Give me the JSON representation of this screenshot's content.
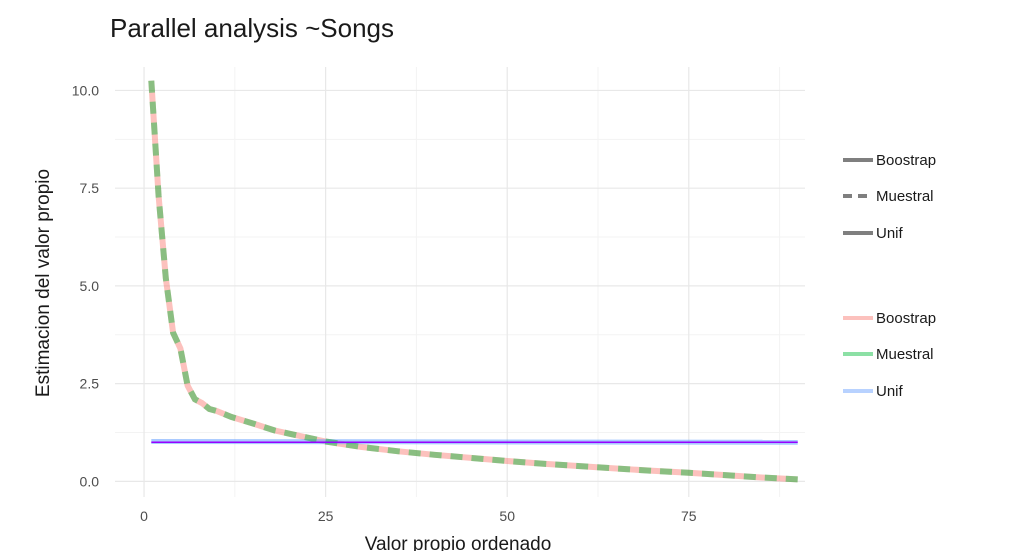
{
  "chart_data": {
    "type": "line",
    "title": "Parallel analysis ~Songs",
    "xlabel": "Valor propio ordenado",
    "ylabel": "Estimacion del valor propio",
    "xlim": [
      -4,
      91
    ],
    "ylim": [
      -0.4,
      10.6
    ],
    "xticks": [
      0,
      25,
      50,
      75
    ],
    "xtick_labels": [
      "0",
      "25",
      "50",
      "75"
    ],
    "yticks": [
      0,
      2.5,
      5,
      7.5,
      10
    ],
    "ytick_labels": [
      "0.0",
      "2.5",
      "5.0",
      "7.5",
      "10.0"
    ],
    "grid": true,
    "legend": {
      "placement": "right",
      "linetype": [
        "Boostrap",
        "Muestral",
        "Unif"
      ],
      "color": [
        "Boostrap",
        "Muestral",
        "Unif"
      ]
    },
    "colors": {
      "Boostrap": "#f8766d",
      "Muestral": "#00ba38",
      "Unif": "#619cff",
      "legend_key_gray": "#7f7f7f"
    },
    "series": [
      {
        "name": "Boostrap",
        "linetype": "solid",
        "x": [
          1,
          2,
          3,
          4,
          5,
          6,
          7,
          8,
          9,
          10,
          12,
          15,
          18,
          20,
          25,
          30,
          35,
          40,
          45,
          50,
          55,
          60,
          65,
          70,
          75,
          80,
          85,
          90
        ],
        "y": [
          10.25,
          7.3,
          5.2,
          3.8,
          3.4,
          2.45,
          2.1,
          2.0,
          1.85,
          1.8,
          1.65,
          1.48,
          1.3,
          1.22,
          1.02,
          0.88,
          0.77,
          0.68,
          0.6,
          0.52,
          0.45,
          0.39,
          0.33,
          0.27,
          0.22,
          0.16,
          0.1,
          0.05
        ]
      },
      {
        "name": "Muestral",
        "linetype": "dashed",
        "x": [
          1,
          2,
          3,
          4,
          5,
          6,
          7,
          8,
          9,
          10,
          12,
          15,
          18,
          20,
          25,
          30,
          35,
          40,
          45,
          50,
          55,
          60,
          65,
          70,
          75,
          80,
          85,
          90
        ],
        "y": [
          10.25,
          7.3,
          5.2,
          3.8,
          3.4,
          2.45,
          2.1,
          2.0,
          1.85,
          1.8,
          1.65,
          1.48,
          1.3,
          1.22,
          1.02,
          0.88,
          0.77,
          0.68,
          0.6,
          0.52,
          0.45,
          0.39,
          0.33,
          0.27,
          0.22,
          0.16,
          0.1,
          0.05
        ]
      },
      {
        "name": "Unif",
        "linetype": "solid",
        "x": [
          1,
          90
        ],
        "y": [
          1.02,
          1.0
        ]
      }
    ]
  }
}
